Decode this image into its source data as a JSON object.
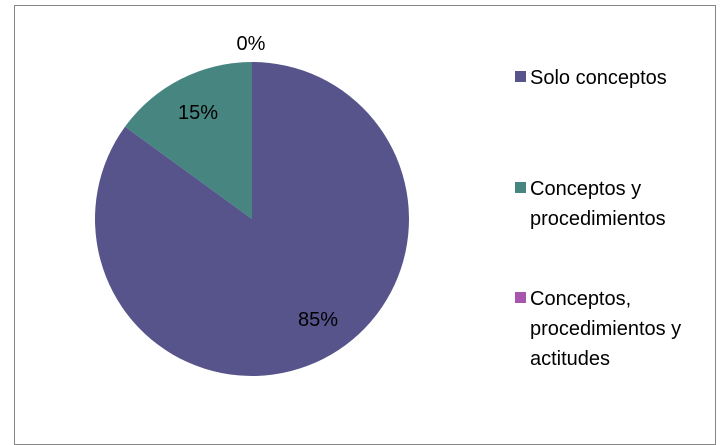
{
  "chart_data": {
    "type": "pie",
    "categories": [
      "Solo conceptos",
      "Conceptos y\nprocedimientos",
      "Conceptos,\nprocedimientos y\nactitudes"
    ],
    "values": [
      85,
      15,
      0
    ],
    "labels": [
      "85%",
      "15%",
      "0%"
    ],
    "colors": [
      "#57538B",
      "#468580",
      "#A855AD"
    ],
    "legend_position": "right",
    "title": ""
  }
}
